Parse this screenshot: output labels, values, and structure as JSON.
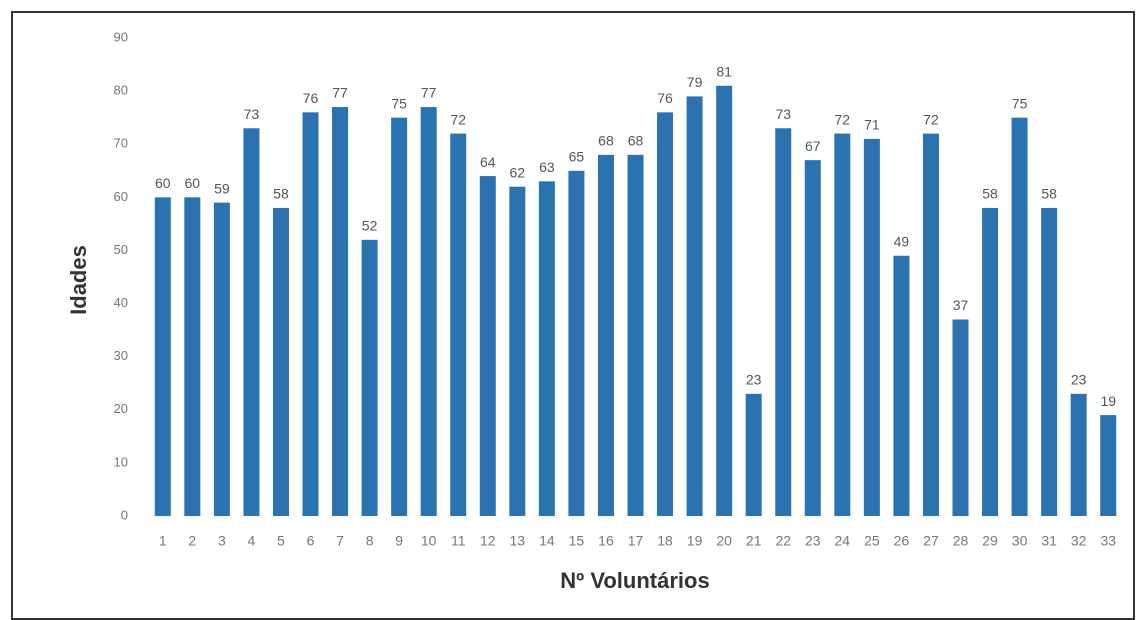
{
  "chart_data": {
    "type": "bar",
    "ylabel": "Idades",
    "xlabel": "Nº Voluntários",
    "categories": [
      "1",
      "2",
      "3",
      "4",
      "5",
      "6",
      "7",
      "8",
      "9",
      "10",
      "11",
      "12",
      "13",
      "14",
      "15",
      "16",
      "17",
      "18",
      "19",
      "20",
      "21",
      "22",
      "23",
      "24",
      "25",
      "26",
      "27",
      "28",
      "29",
      "30",
      "31",
      "32",
      "33"
    ],
    "values": [
      60,
      60,
      59,
      73,
      58,
      76,
      77,
      52,
      75,
      77,
      72,
      64,
      62,
      63,
      65,
      68,
      68,
      76,
      79,
      81,
      23,
      73,
      67,
      72,
      71,
      49,
      72,
      37,
      58,
      75,
      58,
      23,
      19
    ],
    "color": "#2b72b0",
    "ylim": [
      0,
      90
    ],
    "yticks": [
      0,
      10,
      20,
      30,
      40,
      50,
      60,
      70,
      80,
      90
    ],
    "grid": false
  }
}
